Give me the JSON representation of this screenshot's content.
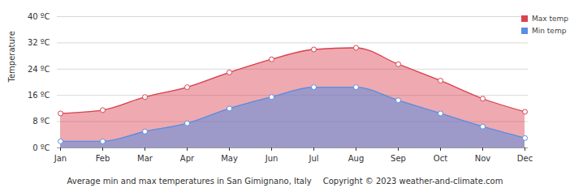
{
  "chart_data": {
    "type": "area",
    "title": "Average min and max temperatures in San Gimignano, Italy",
    "source": "Copyright © 2023  weather-and-climate.com",
    "y_label": "Temperature",
    "categories": [
      "Jan",
      "Feb",
      "Mar",
      "Apr",
      "May",
      "Jun",
      "Jul",
      "Aug",
      "Sep",
      "Oct",
      "Nov",
      "Dec"
    ],
    "series": [
      {
        "name": "Max temp",
        "color": "#d9434f",
        "values": [
          10.5,
          11.5,
          15.5,
          18.5,
          23,
          27,
          30,
          30.5,
          25.5,
          20.5,
          15,
          11
        ]
      },
      {
        "name": "Min temp",
        "color": "#5b8de0",
        "values": [
          2,
          2,
          5,
          7.5,
          12,
          15.5,
          18.5,
          18.5,
          14.5,
          10.5,
          6.5,
          3
        ]
      }
    ],
    "ylim": [
      0,
      40
    ],
    "yticks": [
      {
        "value": 0,
        "label": "0 ºC"
      },
      {
        "value": 8,
        "label": "8 ºC"
      },
      {
        "value": 16,
        "label": "16 ºC"
      },
      {
        "value": 24,
        "label": "24 ºC"
      },
      {
        "value": 32,
        "label": "32 ºC"
      },
      {
        "value": 40,
        "label": "40 ºC"
      }
    ],
    "grid": true,
    "legend": "top-right",
    "marker": "circle"
  }
}
